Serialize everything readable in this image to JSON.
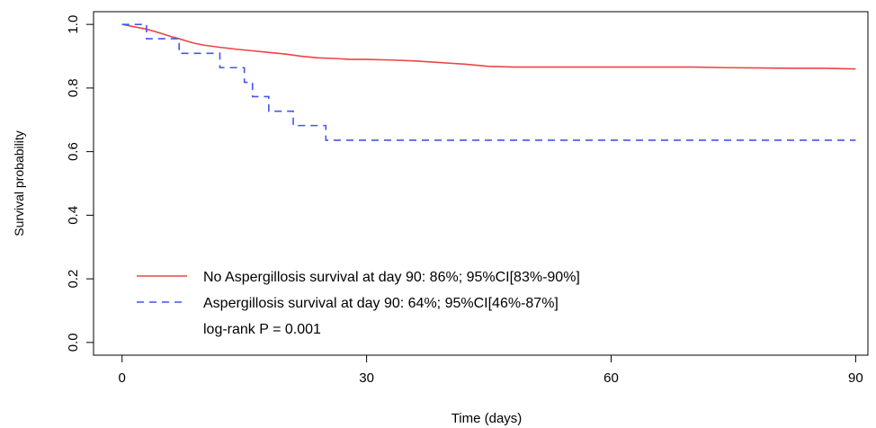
{
  "chart_data": {
    "type": "line",
    "xlabel": "Time (days)",
    "ylabel": "Survival probability",
    "xlim": [
      -3.5,
      91.5
    ],
    "ylim": [
      -0.04,
      1.04
    ],
    "xticks": [
      0,
      30,
      60,
      90
    ],
    "yticks": [
      0.0,
      0.2,
      0.4,
      0.6,
      0.8,
      1.0
    ],
    "ytick_labels": [
      "0.0",
      "0.2",
      "0.4",
      "0.6",
      "0.8",
      "1.0"
    ],
    "grid": false,
    "legend_position": "bottom-left",
    "series": [
      {
        "name": "No Aspergillosis survival at day 90: 86%; 95%CI[83%-90%]",
        "color": "#ee4444",
        "style": "solid",
        "points": [
          [
            0,
            1.0
          ],
          [
            1,
            0.995
          ],
          [
            2,
            0.99
          ],
          [
            3,
            0.985
          ],
          [
            4,
            0.978
          ],
          [
            5,
            0.97
          ],
          [
            6,
            0.962
          ],
          [
            7,
            0.955
          ],
          [
            8,
            0.947
          ],
          [
            9,
            0.94
          ],
          [
            10,
            0.935
          ],
          [
            12,
            0.928
          ],
          [
            14,
            0.922
          ],
          [
            16,
            0.917
          ],
          [
            18,
            0.912
          ],
          [
            20,
            0.907
          ],
          [
            22,
            0.9
          ],
          [
            24,
            0.895
          ],
          [
            26,
            0.893
          ],
          [
            28,
            0.89
          ],
          [
            30,
            0.89
          ],
          [
            33,
            0.888
          ],
          [
            36,
            0.885
          ],
          [
            39,
            0.88
          ],
          [
            42,
            0.875
          ],
          [
            45,
            0.868
          ],
          [
            48,
            0.866
          ],
          [
            52,
            0.866
          ],
          [
            56,
            0.866
          ],
          [
            60,
            0.866
          ],
          [
            65,
            0.866
          ],
          [
            70,
            0.866
          ],
          [
            74,
            0.864
          ],
          [
            78,
            0.863
          ],
          [
            82,
            0.862
          ],
          [
            86,
            0.862
          ],
          [
            90,
            0.86
          ]
        ]
      },
      {
        "name": "Aspergillosis survival at day 90: 64%; 95%CI[46%-87%]",
        "color": "#4455ee",
        "style": "dashed",
        "points": [
          [
            0,
            1.0
          ],
          [
            3,
            1.0
          ],
          [
            3,
            0.955
          ],
          [
            7,
            0.955
          ],
          [
            7,
            0.909
          ],
          [
            12,
            0.909
          ],
          [
            12,
            0.864
          ],
          [
            15,
            0.864
          ],
          [
            15,
            0.818
          ],
          [
            16,
            0.818
          ],
          [
            16,
            0.773
          ],
          [
            18,
            0.773
          ],
          [
            18,
            0.727
          ],
          [
            21,
            0.727
          ],
          [
            21,
            0.682
          ],
          [
            25,
            0.682
          ],
          [
            25,
            0.636
          ],
          [
            90,
            0.636
          ]
        ]
      }
    ],
    "annotations": [
      "log-rank P = 0.001"
    ]
  }
}
